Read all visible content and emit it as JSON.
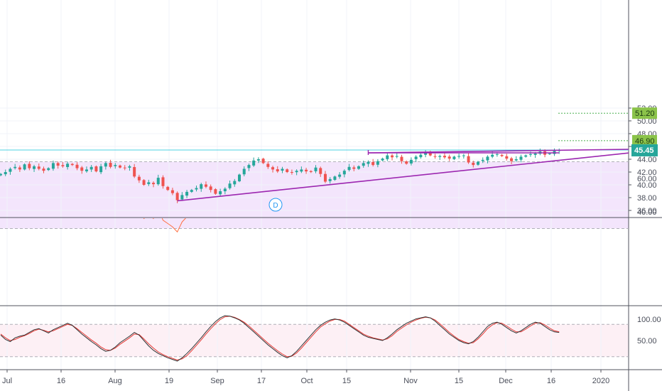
{
  "colors": {
    "up": "#26a69a",
    "down": "#ef5350",
    "trendline": "#9c27b0",
    "last_price_line": "#4dd0e1",
    "last_price_tag": "#26a69a",
    "target_tag": "#8bc34a",
    "target_line": "#4caf50",
    "rsi_line": "#ff7043",
    "rsi_band": "#f3e5fc",
    "stoch_k": "#333333",
    "stoch_d": "#e53935",
    "stoch_band": "#fdf0f5",
    "grid": "#f0f3fa",
    "divider": "#50535e",
    "axis_text": "#4a4e5a"
  },
  "interval_badge": "D",
  "chart_data": [
    {
      "type": "candlestick",
      "panel": "price",
      "ylim": [
        35.5,
        52.5
      ],
      "y_ticks": [
        "36.00",
        "38.00",
        "40.00",
        "42.00",
        "44.00",
        "46.00",
        "48.00",
        "50.00",
        "52.00"
      ],
      "x_ticks": [
        "Jul",
        "16",
        "Aug",
        "19",
        "Sep",
        "17",
        "Oct",
        "15",
        "Nov",
        "15",
        "Dec",
        "16",
        "2020"
      ],
      "close": [
        41.7,
        42.0,
        42.5,
        42.8,
        42.4,
        43.2,
        42.6,
        42.9,
        42.5,
        42.2,
        42.6,
        43.4,
        43.0,
        42.9,
        43.3,
        43.1,
        42.6,
        42.2,
        42.4,
        42.8,
        42.1,
        42.9,
        43.4,
        42.8,
        43.1,
        42.7,
        42.6,
        42.9,
        41.3,
        40.7,
        40.0,
        40.4,
        40.1,
        41.1,
        39.8,
        39.2,
        38.7,
        37.6,
        38.4,
        38.9,
        39.2,
        39.5,
        40.1,
        39.7,
        39.2,
        38.6,
        39.0,
        39.4,
        40.2,
        40.6,
        41.6,
        42.5,
        43.1,
        43.8,
        44.0,
        43.4,
        42.8,
        42.4,
        42.1,
        42.5,
        42.0,
        41.9,
        42.2,
        42.4,
        42.1,
        42.0,
        42.7,
        41.7,
        40.5,
        40.9,
        41.3,
        41.6,
        42.2,
        42.8,
        42.5,
        42.9,
        43.4,
        43.6,
        43.1,
        43.7,
        44.1,
        44.6,
        44.3,
        44.5,
        43.7,
        43.3,
        43.9,
        44.4,
        44.7,
        45.1,
        44.6,
        44.4,
        44.5,
        44.3,
        44.1,
        44.4,
        44.5,
        44.6,
        43.5,
        43.1,
        43.6,
        43.9,
        44.4,
        44.7,
        44.8,
        44.5,
        44.1,
        43.7,
        44.0,
        44.4,
        44.6,
        44.8,
        44.9,
        45.2,
        44.7,
        44.9,
        45.3,
        45.45
      ]
    },
    {
      "type": "line",
      "panel": "rsi",
      "ylim": [
        27,
        72
      ],
      "y_ticks": [
        "40.00",
        "60.00"
      ],
      "band": [
        30,
        70
      ],
      "values": [
        47,
        54,
        58,
        59,
        55,
        61,
        56,
        58,
        55,
        53,
        55,
        60,
        58,
        57,
        59,
        57,
        53,
        50,
        52,
        55,
        50,
        55,
        59,
        54,
        57,
        53,
        52,
        55,
        44,
        40,
        36,
        38,
        36,
        42,
        35,
        33,
        31,
        28,
        34,
        37,
        39,
        41,
        44,
        42,
        39,
        37,
        39,
        42,
        46,
        48,
        54,
        59,
        62,
        66,
        67,
        63,
        59,
        56,
        54,
        57,
        53,
        52,
        54,
        56,
        54,
        53,
        57,
        50,
        44,
        47,
        49,
        51,
        55,
        58,
        56,
        59,
        62,
        63,
        59,
        63,
        65,
        68,
        65,
        66,
        60,
        57,
        61,
        64,
        66,
        68,
        63,
        61,
        62,
        60,
        58,
        61,
        62,
        63,
        54,
        51,
        55,
        57,
        60,
        62,
        63,
        60,
        56,
        53,
        56,
        59,
        60,
        61,
        61,
        62,
        57,
        58,
        60,
        61
      ]
    },
    {
      "type": "line",
      "panel": "stochastic",
      "ylim": [
        0,
        105
      ],
      "y_ticks": [
        "50.00",
        "100.00"
      ],
      "band": [
        20,
        80
      ],
      "series": [
        {
          "values": [
            60,
            52,
            48,
            55,
            58,
            60,
            65,
            70,
            72,
            68,
            64,
            70,
            74,
            78,
            82,
            78,
            70,
            62,
            55,
            48,
            42,
            35,
            30,
            32,
            38,
            46,
            52,
            58,
            65,
            60,
            50,
            40,
            32,
            26,
            22,
            18,
            15,
            12,
            18,
            26,
            35,
            45,
            55,
            66,
            76,
            85,
            92,
            96,
            95,
            92,
            88,
            82,
            74,
            66,
            58,
            50,
            42,
            35,
            28,
            22,
            18,
            22,
            30,
            40,
            50,
            60,
            70,
            78,
            84,
            88,
            90,
            88,
            84,
            78,
            72,
            66,
            60,
            56,
            54,
            52,
            50,
            55,
            62,
            70,
            76,
            82,
            86,
            90,
            92,
            94,
            92,
            86,
            78,
            70,
            62,
            56,
            50,
            46,
            44,
            48,
            56,
            66,
            76,
            82,
            84,
            80,
            74,
            68,
            64,
            68,
            74,
            80,
            84,
            82,
            76,
            70,
            66,
            65
          ]
        },
        {
          "values": [
            62,
            55,
            50,
            52,
            56,
            59,
            63,
            68,
            71,
            69,
            66,
            68,
            72,
            76,
            80,
            78,
            72,
            65,
            58,
            51,
            45,
            38,
            33,
            32,
            36,
            43,
            49,
            55,
            62,
            61,
            53,
            44,
            36,
            29,
            24,
            20,
            17,
            14,
            16,
            22,
            31,
            41,
            51,
            62,
            72,
            81,
            89,
            94,
            95,
            93,
            89,
            84,
            77,
            69,
            61,
            53,
            45,
            38,
            31,
            25,
            20,
            21,
            27,
            36,
            46,
            56,
            66,
            75,
            81,
            86,
            89,
            89,
            86,
            80,
            74,
            68,
            62,
            58,
            55,
            53,
            51,
            53,
            59,
            67,
            73,
            79,
            84,
            88,
            91,
            93,
            92,
            88,
            81,
            73,
            65,
            58,
            52,
            48,
            45,
            46,
            53,
            62,
            72,
            79,
            83,
            82,
            77,
            71,
            66,
            66,
            71,
            77,
            82,
            83,
            79,
            73,
            68,
            66
          ]
        }
      ]
    }
  ],
  "annotations": {
    "last_price": "45.45",
    "targets": [
      "51.20",
      "46.90"
    ],
    "resistance_level": 45.0,
    "support_line": {
      "from": [
        37,
        37.5
      ],
      "to": [
        118,
        45.2
      ]
    },
    "resistance_segment": {
      "from": [
        77,
        45.0
      ],
      "to": [
        118,
        45.0
      ]
    }
  }
}
